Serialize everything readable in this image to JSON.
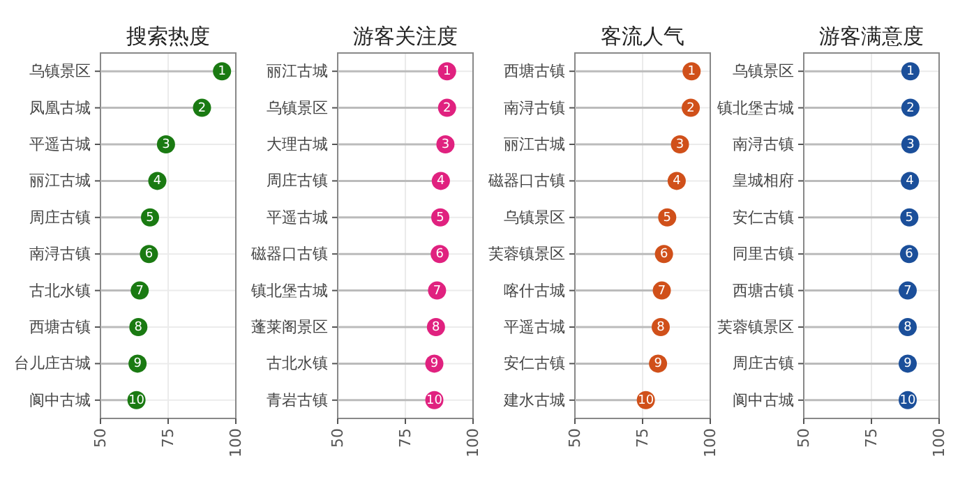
{
  "chart_data": [
    {
      "type": "lollipop",
      "title": "搜索热度",
      "orientation": "horizontal",
      "categories": [
        "乌镇景区",
        "凤凰古城",
        "平遥古城",
        "丽江古城",
        "周庄古镇",
        "南浔古镇",
        "古北水镇",
        "西塘古镇",
        "台儿庄古城",
        "阆中古城"
      ],
      "values": [
        94.9,
        87.5,
        74.2,
        71.0,
        68.3,
        67.9,
        64.5,
        64.0,
        63.7,
        63.3
      ],
      "color": "#1a7a12",
      "xlim": [
        50,
        100
      ],
      "xticks": [
        50,
        75,
        100
      ],
      "grid": true,
      "marker": "circle",
      "annotations": [
        {
          "text": "1",
          "x": 94.9,
          "y": "乌镇景区"
        },
        {
          "text": "2",
          "x": 87.5,
          "y": "凤凰古城"
        },
        {
          "text": "3",
          "x": 74.2,
          "y": "平遥古城"
        },
        {
          "text": "4",
          "x": 71.0,
          "y": "丽江古城"
        },
        {
          "text": "5",
          "x": 68.3,
          "y": "周庄古镇"
        },
        {
          "text": "6",
          "x": 67.9,
          "y": "南浔古镇"
        },
        {
          "text": "7",
          "x": 64.5,
          "y": "古北水镇"
        },
        {
          "text": "8",
          "x": 64.0,
          "y": "西塘古镇"
        },
        {
          "text": "9",
          "x": 63.7,
          "y": "台儿庄古城"
        },
        {
          "text": "10",
          "x": 63.3,
          "y": "阆中古城"
        }
      ]
    },
    {
      "type": "lollipop",
      "title": "游客关注度",
      "orientation": "horizontal",
      "categories": [
        "丽江古城",
        "乌镇景区",
        "大理古城",
        "周庄古镇",
        "平遥古城",
        "磁器口古镇",
        "镇北堡古城",
        "蓬莱阁景区",
        "古北水镇",
        "青岩古镇"
      ],
      "values": [
        90.4,
        90.4,
        89.8,
        88.1,
        87.9,
        87.7,
        86.7,
        86.3,
        85.7,
        85.7
      ],
      "color": "#e0217f",
      "xlim": [
        50,
        100
      ],
      "xticks": [
        50,
        75,
        100
      ],
      "grid": true,
      "marker": "circle",
      "annotations": [
        {
          "text": "1",
          "x": 90.4,
          "y": "丽江古城"
        },
        {
          "text": "2",
          "x": 90.4,
          "y": "乌镇景区"
        },
        {
          "text": "3",
          "x": 89.8,
          "y": "大理古城"
        },
        {
          "text": "4",
          "x": 88.1,
          "y": "周庄古镇"
        },
        {
          "text": "5",
          "x": 87.9,
          "y": "平遥古城"
        },
        {
          "text": "6",
          "x": 87.7,
          "y": "磁器口古镇"
        },
        {
          "text": "7",
          "x": 86.7,
          "y": "镇北堡古城"
        },
        {
          "text": "8",
          "x": 86.3,
          "y": "蓬莱阁景区"
        },
        {
          "text": "9",
          "x": 85.7,
          "y": "古北水镇"
        },
        {
          "text": "10",
          "x": 85.7,
          "y": "青岩古镇"
        }
      ]
    },
    {
      "type": "lollipop",
      "title": "客流人气",
      "orientation": "horizontal",
      "categories": [
        "西塘古镇",
        "南浔古镇",
        "丽江古城",
        "磁器口古镇",
        "乌镇景区",
        "芙蓉镇景区",
        "喀什古城",
        "平遥古城",
        "安仁古镇",
        "建水古城"
      ],
      "values": [
        93.1,
        92.8,
        88.8,
        87.6,
        84.1,
        82.9,
        82.1,
        81.7,
        80.7,
        76.2
      ],
      "color": "#d0501a",
      "xlim": [
        50,
        100
      ],
      "xticks": [
        50,
        75,
        100
      ],
      "grid": true,
      "marker": "circle",
      "annotations": [
        {
          "text": "1",
          "x": 93.1,
          "y": "西塘古镇"
        },
        {
          "text": "2",
          "x": 92.8,
          "y": "南浔古镇"
        },
        {
          "text": "3",
          "x": 88.8,
          "y": "丽江古城"
        },
        {
          "text": "4",
          "x": 87.6,
          "y": "磁器口古镇"
        },
        {
          "text": "5",
          "x": 84.1,
          "y": "乌镇景区"
        },
        {
          "text": "6",
          "x": 82.9,
          "y": "芙蓉镇景区"
        },
        {
          "text": "7",
          "x": 82.1,
          "y": "喀什古城"
        },
        {
          "text": "8",
          "x": 81.7,
          "y": "平遥古城"
        },
        {
          "text": "9",
          "x": 80.7,
          "y": "安仁古镇"
        },
        {
          "text": "10",
          "x": 76.2,
          "y": "建水古城"
        }
      ]
    },
    {
      "type": "lollipop",
      "title": "游客满意度",
      "orientation": "horizontal",
      "categories": [
        "乌镇景区",
        "镇北堡古城",
        "南浔古镇",
        "皇城相府",
        "安仁古镇",
        "同里古镇",
        "西塘古镇",
        "芙蓉镇景区",
        "周庄古镇",
        "阆中古城"
      ],
      "values": [
        89.4,
        89.4,
        89.4,
        89.2,
        89.0,
        88.9,
        88.4,
        88.4,
        88.4,
        88.4
      ],
      "color": "#1b4f9a",
      "xlim": [
        50,
        100
      ],
      "xticks": [
        50,
        75,
        100
      ],
      "grid": true,
      "marker": "circle",
      "annotations": [
        {
          "text": "1",
          "x": 89.4,
          "y": "乌镇景区"
        },
        {
          "text": "2",
          "x": 89.4,
          "y": "镇北堡古城"
        },
        {
          "text": "3",
          "x": 89.4,
          "y": "南浔古镇"
        },
        {
          "text": "4",
          "x": 89.2,
          "y": "皇城相府"
        },
        {
          "text": "5",
          "x": 89.0,
          "y": "安仁古镇"
        },
        {
          "text": "6",
          "x": 88.9,
          "y": "同里古镇"
        },
        {
          "text": "7",
          "x": 88.4,
          "y": "西塘古镇"
        },
        {
          "text": "8",
          "x": 88.4,
          "y": "芙蓉镇景区"
        },
        {
          "text": "9",
          "x": 88.4,
          "y": "周庄古镇"
        },
        {
          "text": "10",
          "x": 88.4,
          "y": "阆中古城"
        }
      ]
    }
  ]
}
